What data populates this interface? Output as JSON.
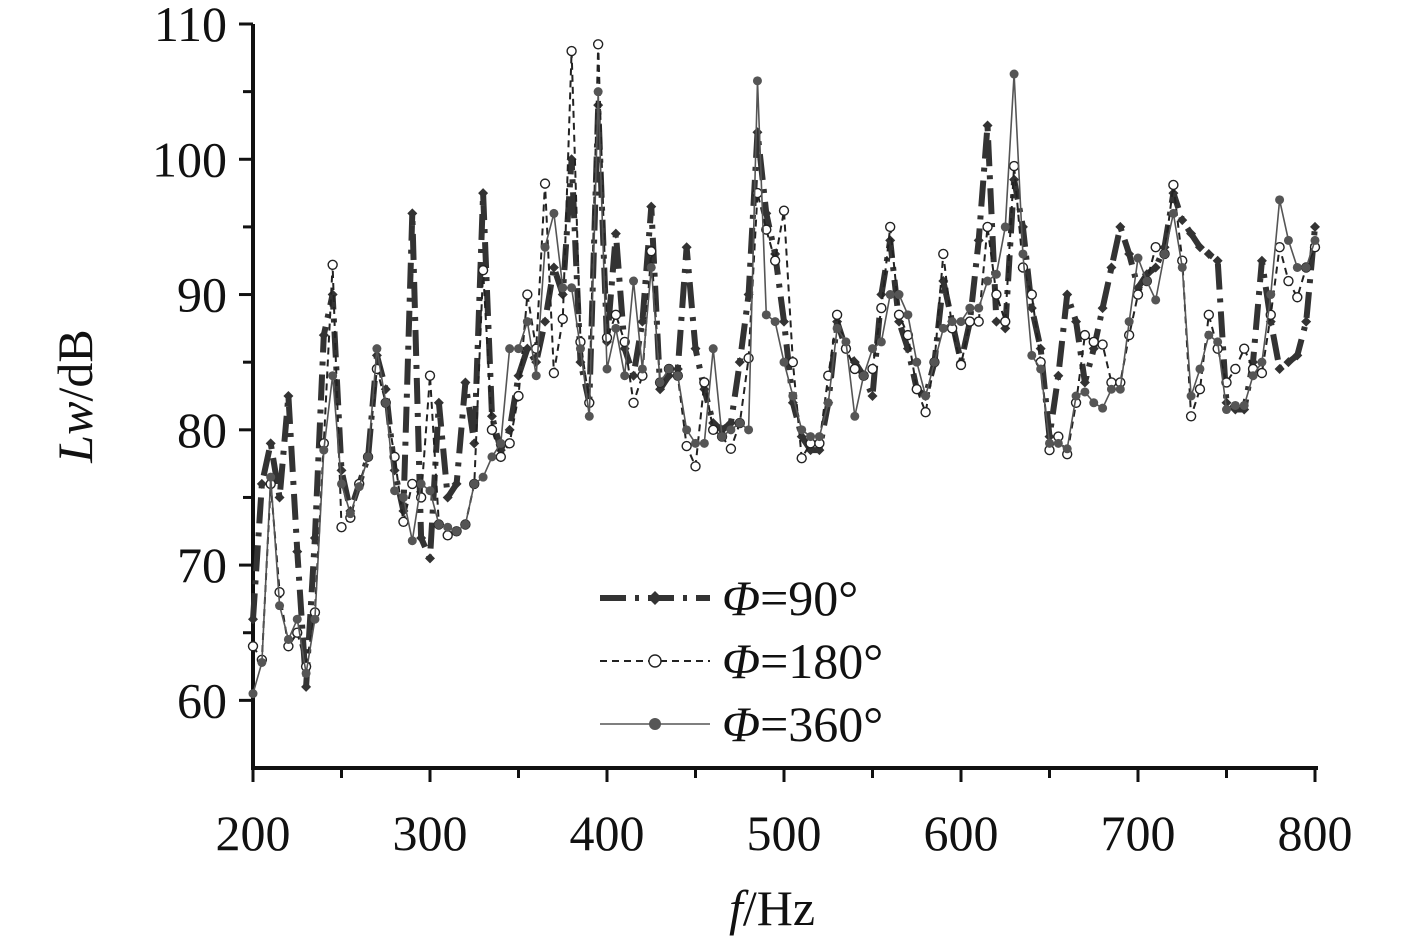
{
  "chart_data": {
    "type": "line",
    "title": "",
    "xlabel": {
      "italic": "f",
      "rest": "/Hz"
    },
    "ylabel": {
      "italic": "Lw",
      "rest": "/dB"
    },
    "xlim": [
      200,
      800
    ],
    "ylim": [
      55,
      110
    ],
    "xticks_major": [
      200,
      300,
      400,
      500,
      600,
      700,
      800
    ],
    "xticks_minor": [
      250,
      350,
      450,
      550,
      650,
      750
    ],
    "yticks": [
      60,
      70,
      80,
      90,
      100,
      110
    ],
    "grid": false,
    "legend_placement": "bottom-center",
    "x": [
      200,
      205,
      210,
      215,
      220,
      225,
      230,
      235,
      240,
      245,
      250,
      255,
      260,
      265,
      270,
      275,
      280,
      285,
      290,
      295,
      300,
      305,
      310,
      315,
      320,
      325,
      330,
      335,
      340,
      345,
      350,
      355,
      360,
      365,
      370,
      375,
      380,
      385,
      390,
      395,
      400,
      405,
      410,
      415,
      420,
      425,
      430,
      435,
      440,
      445,
      450,
      455,
      460,
      465,
      470,
      475,
      480,
      485,
      490,
      495,
      500,
      505,
      510,
      515,
      520,
      525,
      530,
      535,
      540,
      545,
      550,
      555,
      560,
      565,
      570,
      575,
      580,
      585,
      590,
      595,
      600,
      605,
      610,
      615,
      620,
      625,
      630,
      635,
      640,
      645,
      650,
      655,
      660,
      665,
      670,
      675,
      680,
      685,
      690,
      695,
      700,
      705,
      710,
      715,
      720,
      725,
      730,
      735,
      740,
      745,
      750,
      755,
      760,
      765,
      770,
      775,
      780,
      785,
      790,
      795,
      800
    ],
    "series": [
      {
        "name": {
          "italic": "Φ",
          "rest": "=90°"
        },
        "color": "#333333",
        "values": [
          66.0,
          76.0,
          79.0,
          75.0,
          82.5,
          71.0,
          61.0,
          72.0,
          87.0,
          90.0,
          77.0,
          74.0,
          76.0,
          78.0,
          85.5,
          83.0,
          77.0,
          74.0,
          96.0,
          72.0,
          70.5,
          82.0,
          75.0,
          76.0,
          83.5,
          79.0,
          97.5,
          81.0,
          78.5,
          80.0,
          84.0,
          86.0,
          85.0,
          88.0,
          92.0,
          90.0,
          100.0,
          85.0,
          82.0,
          104.0,
          86.5,
          94.5,
          86.0,
          84.0,
          88.0,
          96.5,
          83.0,
          84.0,
          84.5,
          93.5,
          86.0,
          83.0,
          80.5,
          80.0,
          80.5,
          85.0,
          90.0,
          102.0,
          96.0,
          93.0,
          88.0,
          82.0,
          79.5,
          78.5,
          78.5,
          82.0,
          88.0,
          86.0,
          85.0,
          84.0,
          82.5,
          90.0,
          94.0,
          88.0,
          86.0,
          83.0,
          82.5,
          85.0,
          91.0,
          88.0,
          85.0,
          88.0,
          94.0,
          102.5,
          88.0,
          87.5,
          98.5,
          95.0,
          89.0,
          86.0,
          79.5,
          84.0,
          90.0,
          88.0,
          83.5,
          86.0,
          89.0,
          92.0,
          95.0,
          93.0,
          90.5,
          91.5,
          92.0,
          93.5,
          97.5,
          95.5,
          94.5,
          93.5,
          93.0,
          92.5,
          82.0,
          81.5,
          81.5,
          85.0,
          92.5,
          88.0,
          84.5,
          85.0,
          85.5,
          88.0,
          95.0
        ]
      },
      {
        "name": {
          "italic": "Φ",
          "rest": "=180°"
        },
        "color": "#222222",
        "values": [
          64.0,
          63.0,
          76.0,
          68.0,
          64.0,
          65.0,
          62.5,
          66.5,
          79.0,
          92.2,
          72.8,
          73.5,
          76.0,
          78.0,
          84.5,
          82.0,
          78.0,
          73.2,
          76.0,
          75.0,
          84.0,
          73.0,
          72.2,
          72.5,
          73.0,
          76.0,
          91.8,
          80.0,
          78.0,
          79.0,
          82.5,
          90.0,
          86.0,
          98.2,
          84.2,
          88.2,
          108.0,
          86.5,
          82.0,
          108.5,
          86.8,
          88.5,
          86.5,
          82.0,
          84.0,
          93.2,
          83.5,
          84.5,
          84.0,
          78.8,
          77.3,
          83.5,
          80.0,
          79.5,
          78.6,
          80.5,
          85.3,
          97.5,
          94.8,
          92.5,
          96.2,
          85.0,
          77.9,
          79.0,
          79.0,
          84.0,
          88.5,
          86.0,
          84.5,
          84.0,
          84.5,
          89.0,
          95.0,
          88.5,
          87.0,
          83.0,
          81.3,
          85.0,
          93.0,
          87.5,
          84.8,
          88.0,
          88.0,
          95.0,
          90.0,
          88.0,
          99.5,
          92.0,
          90.0,
          85.0,
          78.5,
          79.5,
          78.2,
          82.0,
          87.0,
          86.5,
          86.3,
          83.5,
          83.5,
          87.0,
          90.0,
          91.0,
          93.5,
          93.0,
          98.1,
          92.5,
          81.0,
          83.0,
          88.5,
          86.0,
          83.5,
          84.5,
          86.0,
          84.5,
          84.2,
          88.5,
          93.5,
          91.0,
          89.8,
          92.0,
          93.5
        ]
      },
      {
        "name": {
          "italic": "Φ",
          "rest": "=360°"
        },
        "color": "#555555",
        "values": [
          60.5,
          62.8,
          76.5,
          67.0,
          64.5,
          66.0,
          62.0,
          66.0,
          78.5,
          84.0,
          76.0,
          73.8,
          75.8,
          78.0,
          86.0,
          82.0,
          75.5,
          75.0,
          71.8,
          76.0,
          75.5,
          73.0,
          72.8,
          72.5,
          73.0,
          76.0,
          76.5,
          78.0,
          79.0,
          86.0,
          86.0,
          88.0,
          84.0,
          93.5,
          96.0,
          90.5,
          90.5,
          86.0,
          81.0,
          105.0,
          84.5,
          87.5,
          84.0,
          91.0,
          84.5,
          92.0,
          83.5,
          84.5,
          84.0,
          80.0,
          79.0,
          79.0,
          86.0,
          79.5,
          80.0,
          80.5,
          80.0,
          105.8,
          88.5,
          88.0,
          85.0,
          82.5,
          80.0,
          79.5,
          79.5,
          82.0,
          87.5,
          86.5,
          81.0,
          84.0,
          86.0,
          86.5,
          90.0,
          90.0,
          88.5,
          85.0,
          82.5,
          85.0,
          87.5,
          88.0,
          88.0,
          89.0,
          89.0,
          91.0,
          91.5,
          95.0,
          106.3,
          93.0,
          85.5,
          84.5,
          79.0,
          79.0,
          78.6,
          82.5,
          82.8,
          82.0,
          81.6,
          83.0,
          83.0,
          88.0,
          92.7,
          91.0,
          89.6,
          93.0,
          96.0,
          92.0,
          82.5,
          84.5,
          87.0,
          86.5,
          81.5,
          81.8,
          81.8,
          84.0,
          85.0,
          90.0,
          97.0,
          94.0,
          92.0,
          92.0,
          94.0
        ]
      }
    ]
  }
}
